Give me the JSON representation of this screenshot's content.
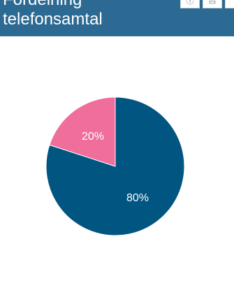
{
  "header": {
    "title": "Fördelning\ntelefonsamtal",
    "tool_icons": [
      "info-icon",
      "document-icon",
      "close-icon"
    ]
  },
  "colors": {
    "header_bg": "#2d6a93",
    "slice_major": "#005581",
    "slice_minor": "#ef6e9b"
  },
  "chart_data": {
    "type": "pie",
    "title": "Fördelning telefonsamtal",
    "slices": [
      {
        "value": 80,
        "label": "80%",
        "color": "#005581"
      },
      {
        "value": 20,
        "label": "20%",
        "color": "#ef6e9b"
      }
    ],
    "start": "12 o'clock",
    "direction": "clockwise",
    "legend": "none"
  }
}
